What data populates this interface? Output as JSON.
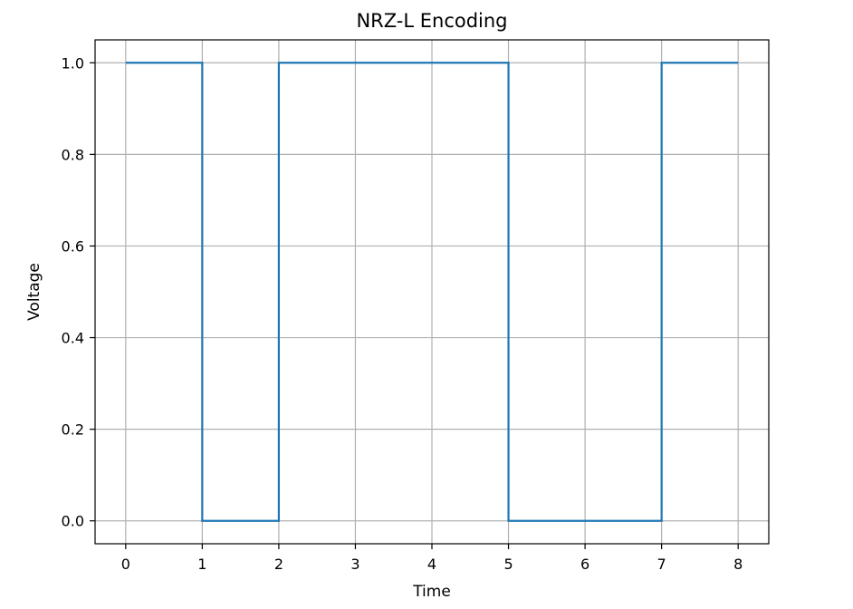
{
  "chart_data": {
    "type": "line",
    "drawstyle": "steps-post",
    "title": "NRZ-L Encoding",
    "xlabel": "Time",
    "ylabel": "Voltage",
    "xlim": [
      -0.4,
      8.4
    ],
    "ylim": [
      -0.05,
      1.05
    ],
    "x_ticks": [
      0,
      1,
      2,
      3,
      4,
      5,
      6,
      7,
      8
    ],
    "x_tick_labels": [
      "0",
      "1",
      "2",
      "3",
      "4",
      "5",
      "6",
      "7",
      "8"
    ],
    "y_ticks": [
      0.0,
      0.2,
      0.4,
      0.6,
      0.8,
      1.0
    ],
    "y_tick_labels": [
      "0.0",
      "0.2",
      "0.4",
      "0.6",
      "0.8",
      "1.0"
    ],
    "grid": true,
    "series": [
      {
        "color": "#1f77b4",
        "x": [
          0,
          1,
          2,
          3,
          4,
          5,
          6,
          7,
          8
        ],
        "y": [
          1,
          0,
          1,
          1,
          1,
          0,
          0,
          1,
          1
        ]
      }
    ]
  }
}
